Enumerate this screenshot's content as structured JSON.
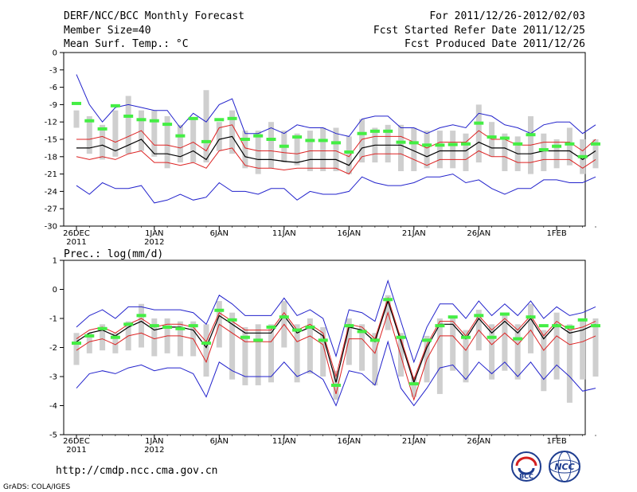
{
  "header": {
    "title": "DERF/NCC/BCC Monthly Forecast",
    "member_size": "Member Size=40",
    "variable_top": "Mean Surf. Temp.: °C",
    "period": "For 2011/12/26-2012/02/03",
    "refer_date": "Fcst Started Refer Date 2011/12/25",
    "produced_date": "Fcst Produced Date 2011/12/26"
  },
  "footer": {
    "url": "http://cmdp.ncc.cma.gov.cn",
    "credit": "GrADS: COLA/IGES",
    "logo_bcc": "BCC",
    "logo_ncc": "NCC"
  },
  "colors": {
    "ensemble_mean": "#000000",
    "spread_band": "#dd2222",
    "extreme_band": "#2222cc",
    "member_box": "#cfcfcf",
    "climatology": "#44ee44"
  },
  "x_ticks": [
    {
      "day": 0,
      "label": "26DEC",
      "sub": "2011"
    },
    {
      "day": 6,
      "label": "1JAN",
      "sub": "2012"
    },
    {
      "day": 11,
      "label": "6JAN",
      "sub": ""
    },
    {
      "day": 16,
      "label": "11JAN",
      "sub": ""
    },
    {
      "day": 21,
      "label": "16JAN",
      "sub": ""
    },
    {
      "day": 26,
      "label": "21JAN",
      "sub": ""
    },
    {
      "day": 31,
      "label": "26JAN",
      "sub": ""
    },
    {
      "day": 37,
      "label": "1FEB",
      "sub": ""
    }
  ],
  "chart_data": [
    {
      "type": "line",
      "title": "Mean Surf. Temp.: °C",
      "xlabel": "",
      "ylabel": "",
      "ylim": [
        -30,
        0
      ],
      "yticks": [
        0,
        -3,
        -6,
        -9,
        -12,
        -15,
        -18,
        -21,
        -24,
        -27,
        -30
      ],
      "series": [
        {
          "name": "ensemble mean",
          "values": [
            -16.5,
            -16.5,
            -16,
            -17,
            -16,
            -15,
            -17.5,
            -17.5,
            -18,
            -17,
            -18.5,
            -15,
            -14.5,
            -18,
            -18.5,
            -18.5,
            -18.8,
            -19,
            -18.5,
            -18.5,
            -18.5,
            -19.5,
            -16.5,
            -16,
            -16,
            -16,
            -17,
            -18,
            -17,
            -17,
            -17,
            -15.5,
            -16.5,
            -16.5,
            -17.5,
            -17.5,
            -17,
            -17,
            -17,
            -18.5,
            -17
          ]
        },
        {
          "name": "upper spread",
          "values": [
            -15,
            -15,
            -14.5,
            -15.5,
            -14.5,
            -13.5,
            -16,
            -16,
            -16.5,
            -15.5,
            -17,
            -13,
            -12.5,
            -16.5,
            -17,
            -17,
            -17.3,
            -17.5,
            -17,
            -17,
            -17,
            -18,
            -15,
            -14.5,
            -14.5,
            -14.5,
            -15.5,
            -16.5,
            -15.5,
            -15.5,
            -15.5,
            -13.5,
            -15,
            -15,
            -16,
            -16,
            -15.5,
            -15.5,
            -15.5,
            -17,
            -15
          ]
        },
        {
          "name": "lower spread",
          "values": [
            -18,
            -18.5,
            -18,
            -18.5,
            -17.5,
            -17,
            -19,
            -19,
            -19.5,
            -19,
            -20,
            -17,
            -16.5,
            -19.5,
            -20,
            -20,
            -20.3,
            -20,
            -20,
            -20,
            -20,
            -21,
            -18,
            -17.5,
            -17.5,
            -17.5,
            -18.5,
            -19.5,
            -18.5,
            -18.5,
            -18.5,
            -17,
            -18,
            -18,
            -19,
            -19,
            -18.5,
            -18.5,
            -18.5,
            -20,
            -18.5
          ]
        },
        {
          "name": "maximum",
          "values": [
            -3.8,
            -9,
            -12,
            -9.5,
            -9,
            -9.5,
            -10,
            -10,
            -13,
            -10.5,
            -12,
            -9,
            -8,
            -14,
            -14,
            -13,
            -14,
            -12.5,
            -13,
            -13,
            -14,
            -14.5,
            -11.5,
            -11,
            -11,
            -13,
            -13,
            -14,
            -13,
            -12.5,
            -13,
            -10.5,
            -11,
            -12.5,
            -13,
            -14,
            -12.5,
            -12,
            -12,
            -14,
            -12.5
          ]
        },
        {
          "name": "minimum",
          "values": [
            -23,
            -24.5,
            -22.5,
            -23.5,
            -23.5,
            -23,
            -26,
            -25.5,
            -24.5,
            -25.5,
            -25,
            -22.5,
            -24,
            -24,
            -24.5,
            -23.5,
            -23.5,
            -25.5,
            -24,
            -24.5,
            -24.5,
            -24,
            -21.5,
            -22.5,
            -23,
            -23,
            -22.5,
            -21.5,
            -21.5,
            -21,
            -22.5,
            -22,
            -23.5,
            -24.5,
            -23.5,
            -23.5,
            -22,
            -22,
            -22.5,
            -22.5,
            -21.5
          ]
        },
        {
          "name": "box high",
          "values": [
            -10,
            -11,
            -12.5,
            -10,
            -7.5,
            -10,
            -10,
            -11,
            -12.5,
            -11.5,
            -6.5,
            -12,
            -10,
            -13.5,
            -13.5,
            -12,
            -13.5,
            -14,
            -13.5,
            -13,
            -13,
            -14.5,
            -11.5,
            -13,
            -12.5,
            -12.5,
            -13,
            -13.5,
            -13.5,
            -13.5,
            -14,
            -9,
            -12,
            -14,
            -14.5,
            -11,
            -14,
            -15,
            -13,
            -15,
            -15
          ]
        },
        {
          "name": "box low",
          "values": [
            -13,
            -17.5,
            -18.5,
            -18,
            -17.5,
            -17,
            -18,
            -20,
            -19,
            -19,
            -19,
            -17,
            -17.5,
            -20,
            -21,
            -20,
            -19,
            -19.5,
            -20.5,
            -20.5,
            -20.5,
            -21,
            -19,
            -19,
            -19,
            -20.5,
            -20.5,
            -20,
            -20,
            -20,
            -20.5,
            -19,
            -18,
            -20.5,
            -20.5,
            -21,
            -20.5,
            -20,
            -19.5,
            -21,
            -20
          ]
        },
        {
          "name": "climatology",
          "values": [
            -8.8,
            -11.8,
            -13.2,
            -9.2,
            -11,
            -11.6,
            -11.8,
            -12.4,
            -14.4,
            -11.4,
            -15.4,
            -11.6,
            -11.4,
            -15,
            -14.4,
            -15,
            -16.2,
            -14.6,
            -15.2,
            -15.2,
            -15.6,
            -17.2,
            -14,
            -13.6,
            -13.6,
            -15.5,
            -15.6,
            -16,
            -16,
            -15.9,
            -15.8,
            -12.2,
            -14.6,
            -14.8,
            -15.8,
            -14.2,
            -16.8,
            -16.2,
            -15.8,
            -18,
            -15.8
          ]
        }
      ]
    },
    {
      "type": "line",
      "title": "Prec.: log(mm/d)",
      "xlabel": "",
      "ylabel": "",
      "ylim": [
        -5,
        1
      ],
      "yticks": [
        1,
        0,
        -1,
        -2,
        -3,
        -4,
        -5
      ],
      "series": [
        {
          "name": "ensemble mean",
          "values": [
            -1.8,
            -1.5,
            -1.4,
            -1.6,
            -1.3,
            -1.1,
            -1.4,
            -1.3,
            -1.3,
            -1.4,
            -2,
            -0.9,
            -1.2,
            -1.5,
            -1.5,
            -1.5,
            -0.9,
            -1.5,
            -1.3,
            -1.6,
            -3.2,
            -1.3,
            -1.4,
            -1.8,
            -0.4,
            -1.8,
            -3.2,
            -2,
            -1.2,
            -1.2,
            -1.7,
            -1,
            -1.5,
            -1.1,
            -1.5,
            -1,
            -1.7,
            -1.2,
            -1.5,
            -1.4,
            -1.2
          ]
        },
        {
          "name": "upper spread",
          "values": [
            -1.7,
            -1.4,
            -1.3,
            -1.5,
            -1.2,
            -1,
            -1.3,
            -1.2,
            -1.2,
            -1.3,
            -1.8,
            -0.8,
            -1.1,
            -1.4,
            -1.4,
            -1.4,
            -0.8,
            -1.4,
            -1.2,
            -1.5,
            -3,
            -1.2,
            -1.3,
            -1.7,
            -0.3,
            -1.7,
            -3.1,
            -1.9,
            -1.1,
            -1.1,
            -1.6,
            -0.9,
            -1.4,
            -1,
            -1.4,
            -0.9,
            -1.6,
            -1.1,
            -1.4,
            -1.3,
            -1.1
          ]
        },
        {
          "name": "lower spread",
          "values": [
            -2.1,
            -1.8,
            -1.7,
            -1.9,
            -1.6,
            -1.5,
            -1.7,
            -1.6,
            -1.6,
            -1.7,
            -2.5,
            -1.2,
            -1.5,
            -1.8,
            -1.8,
            -1.8,
            -1.2,
            -1.8,
            -1.6,
            -1.9,
            -3.6,
            -1.7,
            -1.7,
            -2.2,
            -0.8,
            -2.3,
            -3.8,
            -2.4,
            -1.6,
            -1.6,
            -2.1,
            -1.4,
            -1.9,
            -1.5,
            -1.9,
            -1.4,
            -2.1,
            -1.6,
            -1.9,
            -1.8,
            -1.6
          ]
        },
        {
          "name": "maximum",
          "values": [
            -1.3,
            -0.9,
            -0.7,
            -1,
            -0.6,
            -0.6,
            -0.7,
            -0.7,
            -0.7,
            -0.8,
            -1.2,
            -0.2,
            -0.5,
            -0.9,
            -0.9,
            -0.9,
            -0.3,
            -0.9,
            -0.7,
            -1,
            -2.3,
            -0.7,
            -0.8,
            -1.1,
            0.3,
            -1.1,
            -2.5,
            -1.3,
            -0.5,
            -0.5,
            -1,
            -0.4,
            -0.9,
            -0.5,
            -0.9,
            -0.4,
            -1,
            -0.6,
            -0.9,
            -0.8,
            -0.6
          ]
        },
        {
          "name": "minimum",
          "values": [
            -3.4,
            -2.9,
            -2.8,
            -2.9,
            -2.7,
            -2.6,
            -2.8,
            -2.7,
            -2.7,
            -2.9,
            -3.7,
            -2.5,
            -2.8,
            -3,
            -3,
            -3,
            -2.5,
            -3,
            -2.8,
            -3.1,
            -4,
            -2.8,
            -2.9,
            -3.3,
            -1.8,
            -3.4,
            -4,
            -3.4,
            -2.7,
            -2.6,
            -3.1,
            -2.5,
            -2.9,
            -2.5,
            -3,
            -2.5,
            -3.1,
            -2.6,
            -3,
            -3.5,
            -3.4
          ]
        },
        {
          "name": "box high",
          "values": [
            -1.5,
            -1.5,
            -1.2,
            -1.5,
            -1.1,
            -0.5,
            -1,
            -1,
            -1.1,
            -1.1,
            -1.2,
            -0.4,
            -0.8,
            -1.3,
            -1.2,
            -1.2,
            -0.4,
            -1.2,
            -1,
            -1.3,
            -2.8,
            -1,
            -1.2,
            -1.5,
            -0.2,
            -1.5,
            -3,
            -1.6,
            -1,
            -0.9,
            -1.4,
            -0.7,
            -1.2,
            -0.9,
            -1.2,
            -0.5,
            -1.4,
            -0.8,
            -1.2,
            -1,
            -1
          ]
        },
        {
          "name": "box low",
          "values": [
            -2.6,
            -2.2,
            -2.1,
            -2.2,
            -2.1,
            -2,
            -2.3,
            -2.2,
            -2.3,
            -2.3,
            -3,
            -2,
            -3.1,
            -3.3,
            -3.3,
            -3.2,
            -2,
            -3.2,
            -2.9,
            -3,
            -3.8,
            -2.6,
            -2.8,
            -3.3,
            -1.4,
            -3,
            -3.7,
            -3.2,
            -3.6,
            -2.8,
            -3.2,
            -2.1,
            -3.1,
            -2.8,
            -3.1,
            -2.2,
            -3.5,
            -3.1,
            -3.9,
            -3.1,
            -3
          ]
        },
        {
          "name": "climatology",
          "values": [
            -1.85,
            -1.6,
            -1.35,
            -1.65,
            -1.2,
            -0.9,
            -1.25,
            -1.3,
            -1.35,
            -1.25,
            -1.85,
            -0.72,
            -1.05,
            -1.65,
            -1.75,
            -1.3,
            -0.95,
            -1.4,
            -1.3,
            -1.75,
            -3.3,
            -1.25,
            -1.45,
            -1.75,
            -0.35,
            -1.65,
            -3.25,
            -1.75,
            -1.25,
            -0.95,
            -1.65,
            -0.9,
            -1.65,
            -0.85,
            -1.7,
            -0.95,
            -1.25,
            -1.25,
            -1.3,
            -1.05,
            -1.25
          ]
        }
      ]
    }
  ]
}
